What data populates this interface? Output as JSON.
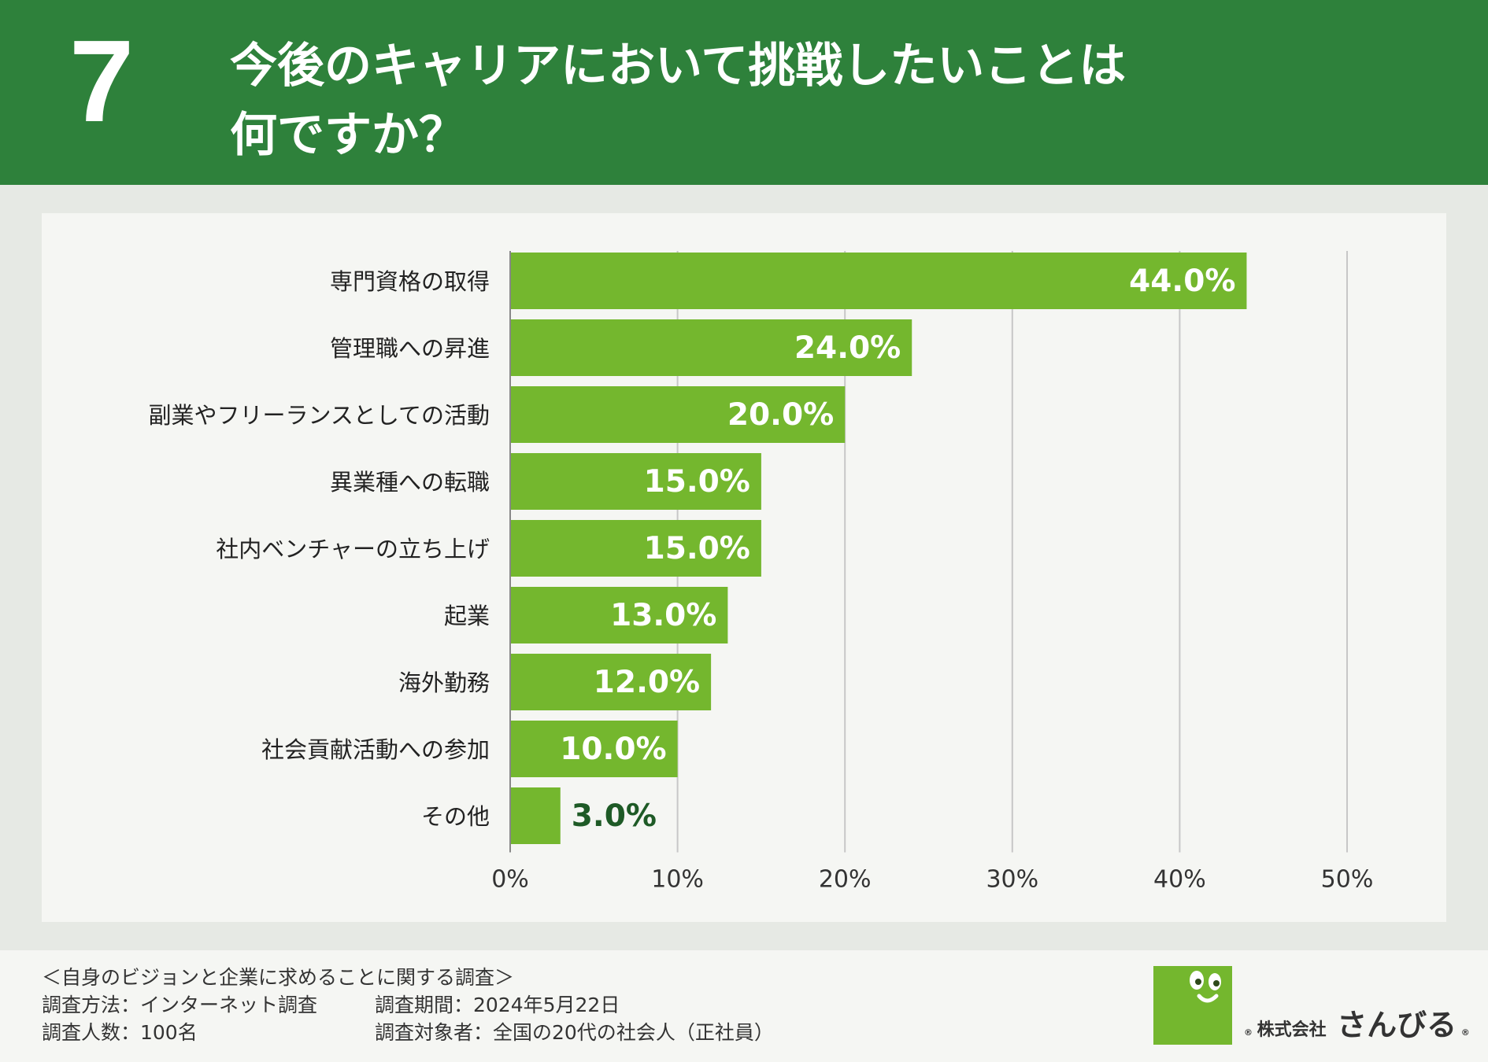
{
  "header": {
    "number": "7",
    "title_line1": "今後のキャリアにおいて挑戦したいことは",
    "title_line2": "何ですか？"
  },
  "colors": {
    "header_bg": "#2e813b",
    "bar": "#74b72e",
    "bar_label_inside": "#ffffff",
    "bar_label_outside": "#1e5a26"
  },
  "chart_data": {
    "type": "bar",
    "orientation": "horizontal",
    "categories": [
      "専門資格の取得",
      "管理職への昇進",
      "副業やフリーランスとしての活動",
      "異業種への転職",
      "社内ベンチャーの立ち上げ",
      "起業",
      "海外勤務",
      "社会貢献活動への参加",
      "その他"
    ],
    "values": [
      44.0,
      24.0,
      20.0,
      15.0,
      15.0,
      13.0,
      12.0,
      10.0,
      3.0
    ],
    "value_labels": [
      "44.0%",
      "24.0%",
      "20.0%",
      "15.0%",
      "15.0%",
      "13.0%",
      "12.0%",
      "10.0%",
      "3.0%"
    ],
    "xlim": [
      0,
      50
    ],
    "xticks": [
      0,
      10,
      20,
      30,
      40,
      50
    ],
    "xtick_labels": [
      "0%",
      "10%",
      "20%",
      "30%",
      "40%",
      "50%"
    ],
    "grid": true,
    "unit": "%"
  },
  "footer": {
    "survey_name": "＜自身のビジョンと企業に求めることに関する調査＞",
    "method": "調査方法：インターネット調査",
    "period": "調査期間：2024年5月22日",
    "count": "調査人数：100名",
    "target": "調査対象者：全国の20代の社会人（正社員）"
  },
  "logo": {
    "corp": "株式会社",
    "name": "さんびる",
    "registered": "®"
  }
}
